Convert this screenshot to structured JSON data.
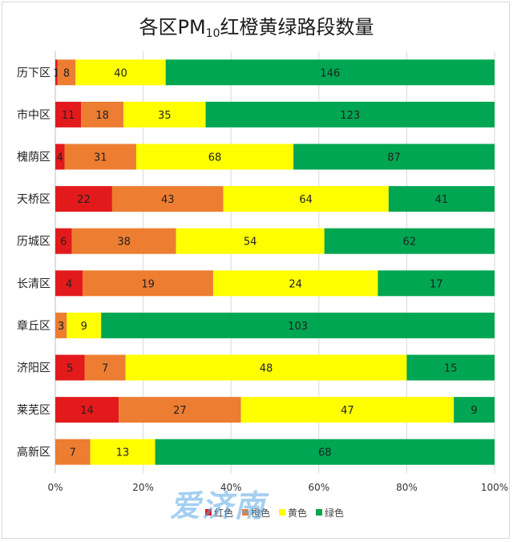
{
  "chart_data": {
    "type": "bar",
    "orientation": "horizontal",
    "stacked": "percent",
    "title_prefix": "各区PM",
    "title_sub": "10",
    "title_suffix": "红橙黄绿路段数量",
    "categories": [
      "历下区",
      "市中区",
      "槐荫区",
      "天桥区",
      "历城区",
      "长清区",
      "章丘区",
      "济阳区",
      "莱芜区",
      "高新区"
    ],
    "series": [
      {
        "name": "红色",
        "color": "#e31a1c",
        "values": [
          1,
          11,
          4,
          22,
          6,
          4,
          0,
          5,
          14,
          0
        ]
      },
      {
        "name": "橙色",
        "color": "#ed7d31",
        "values": [
          8,
          18,
          31,
          43,
          38,
          19,
          3,
          7,
          27,
          7
        ]
      },
      {
        "name": "黄色",
        "color": "#ffff00",
        "values": [
          40,
          35,
          68,
          64,
          54,
          24,
          9,
          48,
          47,
          13
        ]
      },
      {
        "name": "绿色",
        "color": "#00a651",
        "values": [
          146,
          123,
          87,
          41,
          62,
          17,
          103,
          15,
          9,
          68
        ]
      }
    ],
    "x_ticks": [
      "0%",
      "20%",
      "40%",
      "60%",
      "80%",
      "100%"
    ],
    "xlim": [
      0,
      100
    ],
    "grid": true,
    "legend_position": "bottom"
  },
  "watermark": "爱济南"
}
